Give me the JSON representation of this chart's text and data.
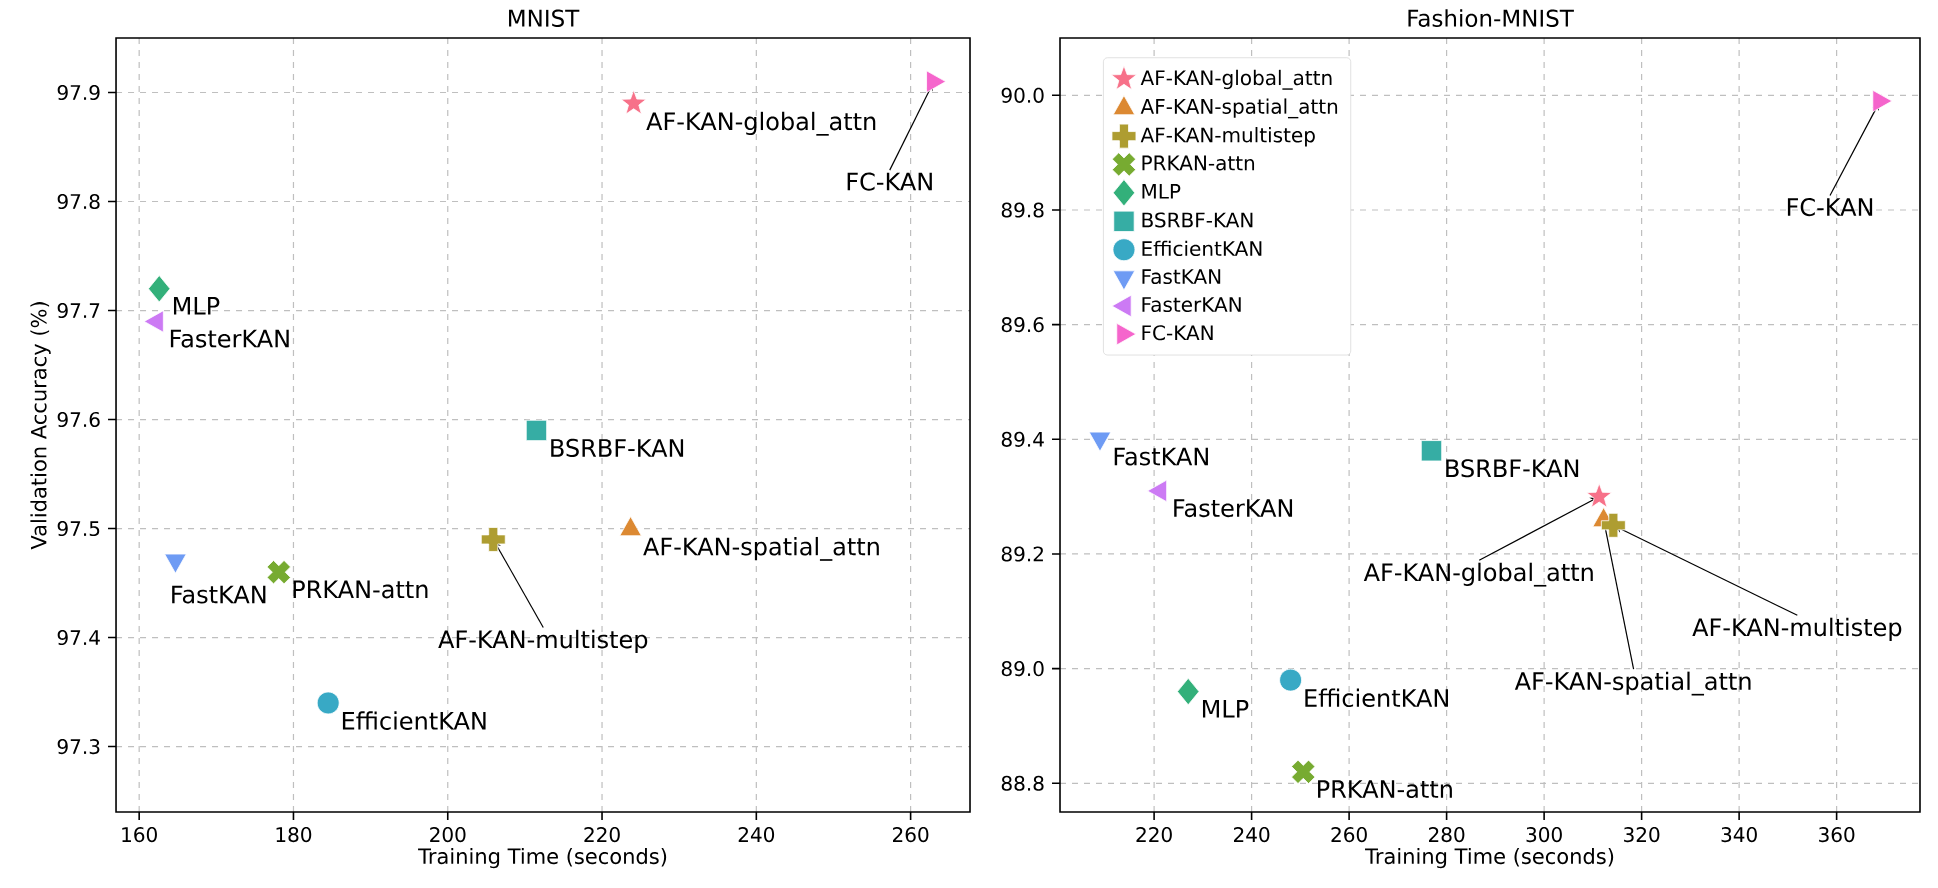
{
  "chart_data": [
    {
      "type": "scatter",
      "title": "MNIST",
      "xlabel": "Training Time (seconds)",
      "ylabel": "Validation Accuracy (%)",
      "xlim": [
        157.0,
        267.7
      ],
      "ylim": [
        97.24,
        97.95
      ],
      "xticks": [
        160,
        180,
        200,
        220,
        240,
        260
      ],
      "yticks": [
        97.3,
        97.4,
        97.5,
        97.6,
        97.7,
        97.8,
        97.9
      ],
      "grid": true,
      "legend": false,
      "series": [
        {
          "name": "AF-KAN-global_attn",
          "color": "#f77189",
          "marker": "star",
          "x": [
            224.1
          ],
          "values": [
            97.89
          ]
        },
        {
          "name": "AF-KAN-spatial_attn",
          "color": "#dc8932",
          "marker": "triangle",
          "x": [
            223.7
          ],
          "values": [
            97.5
          ]
        },
        {
          "name": "AF-KAN-multistep",
          "color": "#ae9d31",
          "marker": "plus",
          "x": [
            205.9
          ],
          "values": [
            97.49
          ]
        },
        {
          "name": "PRKAN-attn",
          "color": "#77ab31",
          "marker": "cross",
          "x": [
            178.1
          ],
          "values": [
            97.46
          ]
        },
        {
          "name": "MLP",
          "color": "#33b07a",
          "marker": "diamond",
          "x": [
            162.6
          ],
          "values": [
            97.72
          ]
        },
        {
          "name": "BSRBF-KAN",
          "color": "#36ada4",
          "marker": "square",
          "x": [
            211.5
          ],
          "values": [
            97.59
          ]
        },
        {
          "name": "EfficientKAN",
          "color": "#38a9c5",
          "marker": "circle",
          "x": [
            184.5
          ],
          "values": [
            97.34
          ]
        },
        {
          "name": "FastKAN",
          "color": "#6e9bf4",
          "marker": "triangle_down",
          "x": [
            164.7
          ],
          "values": [
            97.47
          ]
        },
        {
          "name": "FasterKAN",
          "color": "#cc7af4",
          "marker": "triangle_left",
          "x": [
            162.2
          ],
          "values": [
            97.69
          ]
        },
        {
          "name": "FC-KAN",
          "color": "#f565cc",
          "marker": "triangle_right",
          "x": [
            263.0
          ],
          "values": [
            97.91
          ]
        }
      ]
    },
    {
      "type": "scatter",
      "title": "Fashion-MNIST",
      "xlabel": "Training Time (seconds)",
      "xlim": [
        200.7,
        377.1
      ],
      "ylim": [
        88.75,
        90.1
      ],
      "xticks": [
        220,
        240,
        260,
        280,
        300,
        320,
        340,
        360
      ],
      "yticks": [
        88.8,
        {
          "value": 89.0,
          "label": "89.0"
        },
        89.2,
        89.4,
        89.6,
        89.8,
        {
          "value": 90.0,
          "label": "90.0"
        }
      ],
      "grid": true,
      "legend": "top left",
      "series": [
        {
          "name": "AF-KAN-global_attn",
          "color": "#f77189",
          "marker": "star",
          "x": [
            311.3
          ],
          "values": [
            89.3
          ]
        },
        {
          "name": "AF-KAN-spatial_attn",
          "color": "#dc8932",
          "marker": "triangle",
          "x": [
            312.2
          ],
          "values": [
            89.26
          ]
        },
        {
          "name": "AF-KAN-multistep",
          "color": "#ae9d31",
          "marker": "plus",
          "x": [
            314.2
          ],
          "values": [
            89.25
          ]
        },
        {
          "name": "PRKAN-attn",
          "color": "#77ab31",
          "marker": "cross",
          "x": [
            250.6
          ],
          "values": [
            88.82
          ]
        },
        {
          "name": "MLP",
          "color": "#33b07a",
          "marker": "diamond",
          "x": [
            227.0
          ],
          "values": [
            88.96
          ]
        },
        {
          "name": "BSRBF-KAN",
          "color": "#36ada4",
          "marker": "square",
          "x": [
            276.9
          ],
          "values": [
            89.38
          ]
        },
        {
          "name": "EfficientKAN",
          "color": "#38a9c5",
          "marker": "circle",
          "x": [
            248.0
          ],
          "values": [
            88.98
          ]
        },
        {
          "name": "FastKAN",
          "color": "#6e9bf4",
          "marker": "triangle_down",
          "x": [
            208.9
          ],
          "values": [
            89.4
          ]
        },
        {
          "name": "FasterKAN",
          "color": "#cc7af4",
          "marker": "triangle_left",
          "x": [
            221.1
          ],
          "values": [
            89.31
          ]
        },
        {
          "name": "FC-KAN",
          "color": "#f565cc",
          "marker": "triangle_right",
          "x": [
            368.9
          ],
          "values": [
            89.99
          ]
        }
      ]
    }
  ]
}
